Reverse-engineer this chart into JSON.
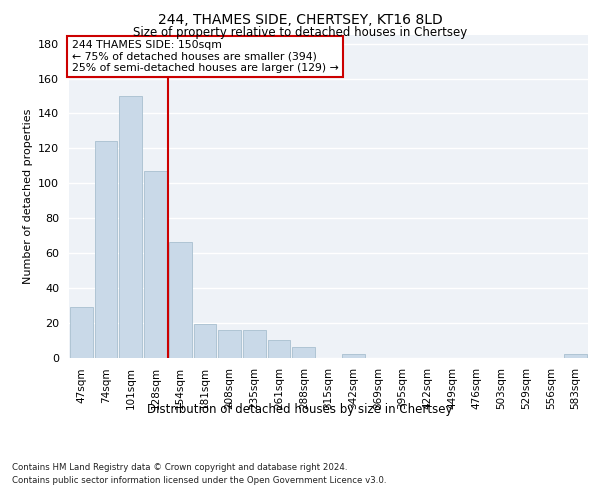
{
  "title": "244, THAMES SIDE, CHERTSEY, KT16 8LD",
  "subtitle": "Size of property relative to detached houses in Chertsey",
  "xlabel": "Distribution of detached houses by size in Chertsey",
  "ylabel": "Number of detached properties",
  "categories": [
    "47sqm",
    "74sqm",
    "101sqm",
    "128sqm",
    "154sqm",
    "181sqm",
    "208sqm",
    "235sqm",
    "261sqm",
    "288sqm",
    "315sqm",
    "342sqm",
    "369sqm",
    "395sqm",
    "422sqm",
    "449sqm",
    "476sqm",
    "503sqm",
    "529sqm",
    "556sqm",
    "583sqm"
  ],
  "values": [
    29,
    124,
    150,
    107,
    66,
    19,
    16,
    16,
    10,
    6,
    0,
    2,
    0,
    0,
    0,
    0,
    0,
    0,
    0,
    0,
    2
  ],
  "bar_color": "#c9d9e8",
  "bar_edge_color": "#a8bfcf",
  "vline_x": 3.5,
  "vline_color": "#cc0000",
  "annotation_line1": "244 THAMES SIDE: 150sqm",
  "annotation_line2": "← 75% of detached houses are smaller (394)",
  "annotation_line3": "25% of semi-detached houses are larger (129) →",
  "annotation_box_color": "#cc0000",
  "annotation_box_facecolor": "white",
  "ylim": [
    0,
    185
  ],
  "yticks": [
    0,
    20,
    40,
    60,
    80,
    100,
    120,
    140,
    160,
    180
  ],
  "background_color": "#eef2f7",
  "grid_color": "white",
  "footer_line1": "Contains HM Land Registry data © Crown copyright and database right 2024.",
  "footer_line2": "Contains public sector information licensed under the Open Government Licence v3.0."
}
